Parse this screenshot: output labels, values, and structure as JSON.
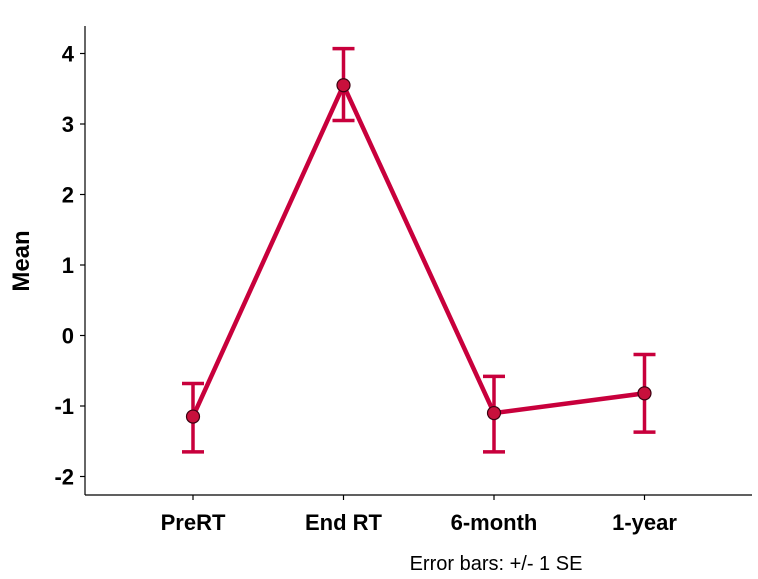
{
  "chart_data": {
    "type": "line",
    "title": "",
    "xlabel": "",
    "ylabel": "Mean",
    "categories": [
      "PreRT",
      "End RT",
      "6-month",
      "1-year"
    ],
    "ylim": [
      -2.3,
      4.4
    ],
    "yticks": [
      "4",
      "3",
      "2",
      "1",
      "0",
      "-1",
      "-2"
    ],
    "ytick_values": [
      4,
      3,
      2,
      1,
      0,
      -1,
      -2
    ],
    "series": [
      {
        "values": [
          -1.15,
          3.55,
          -1.1,
          -0.82
        ],
        "error_low": [
          -1.65,
          3.05,
          -1.65,
          -1.37
        ],
        "error_high": [
          -0.68,
          4.07,
          -0.58,
          -0.27
        ]
      }
    ],
    "grid": false,
    "footnote": "Error bars: +/- 1 SE",
    "colors": {
      "line": "#c8003c",
      "marker_fill": "#c8103c",
      "marker_stroke": "#3a0010",
      "axis": "#000000"
    }
  }
}
